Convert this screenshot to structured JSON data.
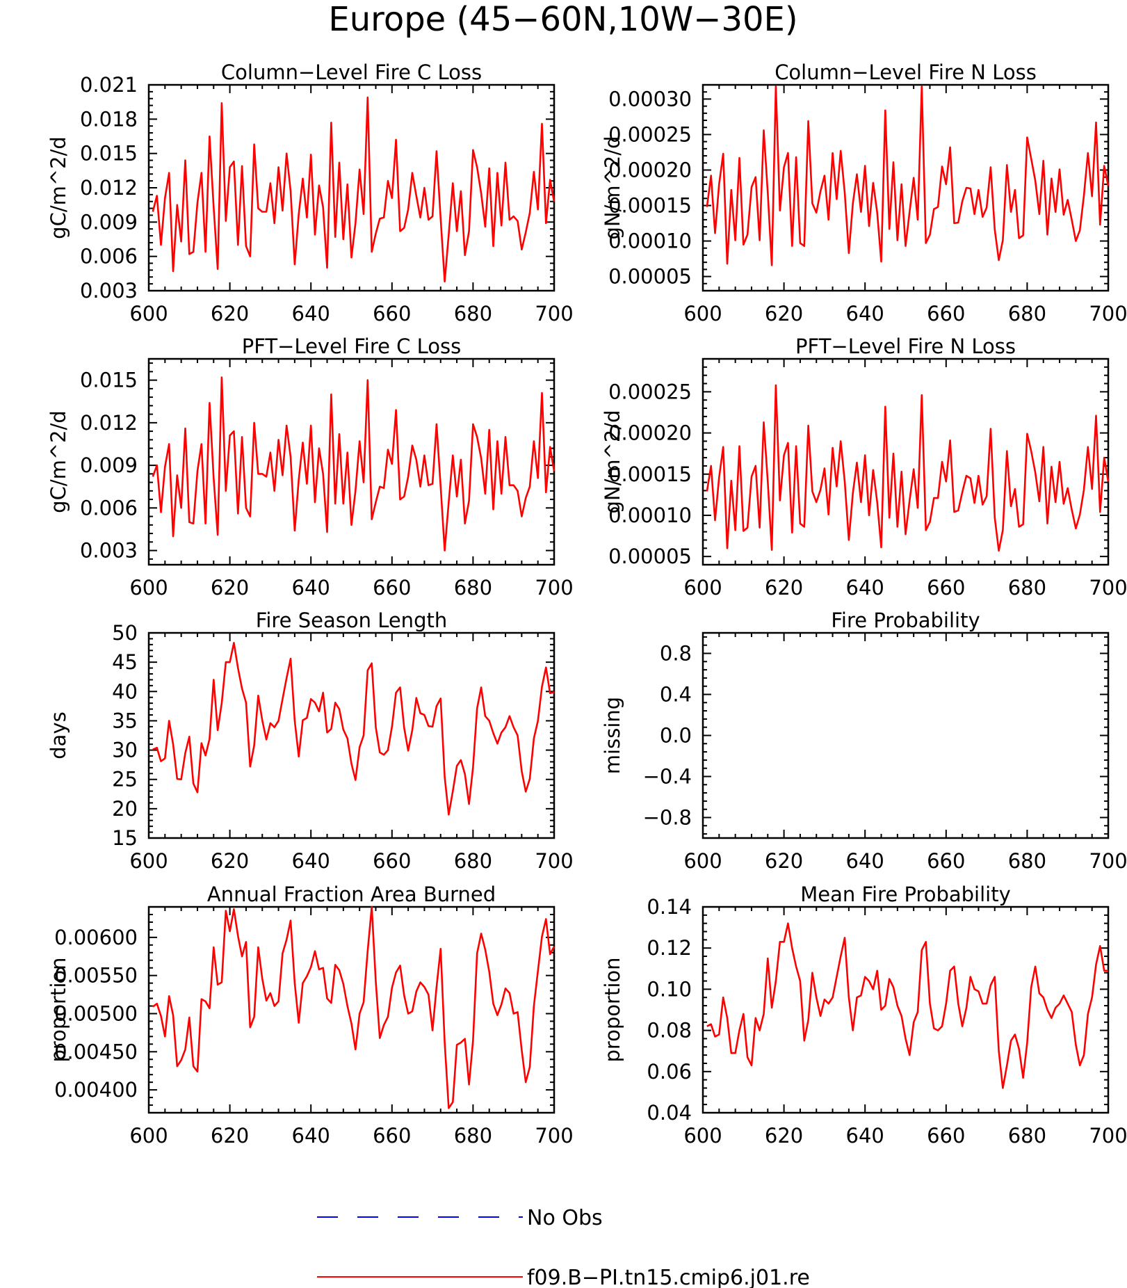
{
  "page_title": "Europe (45−60N,10W−30E)",
  "colors": {
    "model": "#ff0000",
    "obs": "#0000ff",
    "axis": "#000000"
  },
  "legend": {
    "obs_label": "No Obs",
    "model_label": "f09.B−PI.tn15.cmip6.j01.re"
  },
  "chart_data": [
    {
      "id": "col-fire-c",
      "type": "line",
      "title": "Column−Level Fire C Loss",
      "ylabel": "gC/m^2/d",
      "xlabel": "",
      "xlim": [
        600,
        700
      ],
      "ylim": [
        0.003,
        0.021
      ],
      "xticks": [
        600,
        620,
        640,
        660,
        680,
        700
      ],
      "yticks": [
        "0.003",
        "0.006",
        "0.009",
        "0.012",
        "0.015",
        "0.018",
        "0.021"
      ],
      "x_start": 601,
      "series": [
        {
          "name": "f09.B−PI.tn15.cmip6.j01.re",
          "values": [
            0.0099,
            0.0113,
            0.007,
            0.0111,
            0.0133,
            0.0047,
            0.0105,
            0.0073,
            0.0144,
            0.0062,
            0.0064,
            0.0107,
            0.0133,
            0.0064,
            0.0165,
            0.0103,
            0.0049,
            0.0194,
            0.0091,
            0.0138,
            0.0143,
            0.007,
            0.0139,
            0.0069,
            0.006,
            0.0158,
            0.0102,
            0.0099,
            0.0099,
            0.0124,
            0.0089,
            0.0138,
            0.01,
            0.015,
            0.0117,
            0.0053,
            0.0097,
            0.0128,
            0.0094,
            0.0149,
            0.0079,
            0.0122,
            0.0103,
            0.005,
            0.0177,
            0.0077,
            0.0142,
            0.0075,
            0.0123,
            0.0059,
            0.0089,
            0.0136,
            0.0097,
            0.0199,
            0.0064,
            0.008,
            0.0093,
            0.0094,
            0.0126,
            0.0111,
            0.0162,
            0.0082,
            0.0085,
            0.0101,
            0.0133,
            0.0113,
            0.0094,
            0.012,
            0.0092,
            0.0095,
            0.0152,
            0.0093,
            0.0038,
            0.0079,
            0.0124,
            0.0082,
            0.0117,
            0.0061,
            0.0082,
            0.0153,
            0.0138,
            0.0115,
            0.0086,
            0.0137,
            0.0069,
            0.0133,
            0.0087,
            0.0142,
            0.0092,
            0.0095,
            0.0091,
            0.0066,
            0.0081,
            0.0098,
            0.0134,
            0.0101,
            0.0176,
            0.0089,
            0.0127,
            0.0108
          ]
        }
      ]
    },
    {
      "id": "col-fire-n",
      "type": "line",
      "title": "Column−Level Fire N Loss",
      "ylabel": "gN/m^2/d",
      "xlabel": "",
      "xlim": [
        600,
        700
      ],
      "ylim": [
        3e-05,
        0.00032
      ],
      "xticks": [
        600,
        620,
        640,
        660,
        680,
        700
      ],
      "yticks": [
        "0.00005",
        "0.00010",
        "0.00015",
        "0.00020",
        "0.00025",
        "0.00030"
      ],
      "x_start": 601,
      "series": [
        {
          "name": "f09.B−PI.tn15.cmip6.j01.re",
          "values": [
            0.000148,
            0.000192,
            0.000111,
            0.00018,
            0.000223,
            6.8e-05,
            0.000172,
            0.000101,
            0.000217,
            9.5e-05,
            0.000109,
            0.000176,
            0.00019,
            0.000101,
            0.000256,
            0.000168,
            6.6e-05,
            0.000318,
            0.000143,
            0.000204,
            0.000224,
            9.3e-05,
            0.000218,
            9.7e-05,
            9.3e-05,
            0.000269,
            0.000153,
            0.00014,
            0.00017,
            0.000192,
            0.00013,
            0.000224,
            0.000159,
            0.000227,
            0.000168,
            8.3e-05,
            0.000153,
            0.000194,
            0.000141,
            0.000206,
            0.000121,
            0.000182,
            0.00014,
            7.1e-05,
            0.000284,
            0.000117,
            0.000211,
            0.000101,
            0.00018,
            9.3e-05,
            0.000141,
            0.000189,
            0.00013,
            0.000318,
            9.7e-05,
            0.000109,
            0.000145,
            0.000148,
            0.000205,
            0.00018,
            0.000232,
            0.000125,
            0.000126,
            0.000156,
            0.000175,
            0.000174,
            0.000138,
            0.000172,
            0.000134,
            0.000147,
            0.000204,
            0.000116,
            7.3e-05,
            0.000101,
            0.000207,
            0.000141,
            0.000172,
            0.000104,
            0.000108,
            0.000246,
            0.000216,
            0.000185,
            0.000138,
            0.000213,
            0.000109,
            0.000188,
            0.000141,
            0.000201,
            0.000137,
            0.000158,
            0.00013,
            0.0001,
            0.000115,
            0.000164,
            0.000224,
            0.000163,
            0.000267,
            0.000123,
            0.000206,
            0.000178
          ]
        }
      ]
    },
    {
      "id": "pft-fire-c",
      "type": "line",
      "title": "PFT−Level Fire C Loss",
      "ylabel": "gC/m^2/d",
      "xlabel": "",
      "xlim": [
        600,
        700
      ],
      "ylim": [
        0.002,
        0.0165
      ],
      "xticks": [
        600,
        620,
        640,
        660,
        680,
        700
      ],
      "yticks": [
        "0.003",
        "0.006",
        "0.009",
        "0.012",
        "0.015"
      ],
      "x_start": 601,
      "series": [
        {
          "name": "f09.B−PI.tn15.cmip6.j01.re",
          "values": [
            0.0082,
            0.009,
            0.0057,
            0.0089,
            0.0105,
            0.004,
            0.0083,
            0.006,
            0.0116,
            0.005,
            0.0049,
            0.0086,
            0.0105,
            0.0049,
            0.0134,
            0.0081,
            0.0041,
            0.0152,
            0.0072,
            0.0111,
            0.0114,
            0.0056,
            0.011,
            0.006,
            0.0054,
            0.012,
            0.0084,
            0.0084,
            0.0082,
            0.0099,
            0.0072,
            0.0108,
            0.0083,
            0.0118,
            0.0096,
            0.0044,
            0.008,
            0.0106,
            0.0077,
            0.0118,
            0.0064,
            0.0102,
            0.0084,
            0.0043,
            0.014,
            0.0063,
            0.0112,
            0.0063,
            0.0099,
            0.0048,
            0.0072,
            0.0107,
            0.0078,
            0.015,
            0.0052,
            0.0064,
            0.0075,
            0.0074,
            0.0101,
            0.0091,
            0.0129,
            0.0066,
            0.0068,
            0.0082,
            0.0104,
            0.0094,
            0.0075,
            0.0097,
            0.0076,
            0.0077,
            0.0119,
            0.0075,
            0.003,
            0.0064,
            0.0097,
            0.0068,
            0.0094,
            0.0049,
            0.0065,
            0.0119,
            0.011,
            0.0095,
            0.007,
            0.0115,
            0.0059,
            0.0107,
            0.007,
            0.011,
            0.0076,
            0.0076,
            0.0072,
            0.0054,
            0.0067,
            0.0075,
            0.0107,
            0.0081,
            0.0141,
            0.0071,
            0.0103,
            0.0086
          ]
        }
      ]
    },
    {
      "id": "pft-fire-n",
      "type": "line",
      "title": "PFT−Level Fire N Loss",
      "ylabel": "gN/m^2/d",
      "xlabel": "",
      "xlim": [
        600,
        700
      ],
      "ylim": [
        4e-05,
        0.00029
      ],
      "xticks": [
        600,
        620,
        640,
        660,
        680,
        700
      ],
      "yticks": [
        "0.00005",
        "0.00010",
        "0.00015",
        "0.00020",
        "0.00025"
      ],
      "x_start": 601,
      "series": [
        {
          "name": "f09.B−PI.tn15.cmip6.j01.re",
          "values": [
            0.000129,
            0.00016,
            9.4e-05,
            0.000146,
            0.000183,
            6e-05,
            0.000142,
            8.2e-05,
            0.000184,
            8.1e-05,
            8.5e-05,
            0.000147,
            0.00016,
            8.5e-05,
            0.000213,
            0.000141,
            5.8e-05,
            0.000258,
            0.000118,
            0.000173,
            0.000188,
            7.9e-05,
            0.000184,
            9e-05,
            8.6e-05,
            0.000209,
            0.000129,
            0.000116,
            0.000131,
            0.000157,
            0.000101,
            0.000182,
            0.000135,
            0.00019,
            0.000141,
            7e-05,
            0.000127,
            0.000164,
            0.000116,
            0.000173,
            0.0001,
            0.000155,
            0.000116,
            6.1e-05,
            0.000232,
            9.7e-05,
            0.000175,
            8.6e-05,
            0.000153,
            7.7e-05,
            0.000118,
            0.000156,
            0.000109,
            0.000246,
            8.2e-05,
            9.2e-05,
            0.000121,
            0.000121,
            0.000165,
            0.000141,
            0.000191,
            0.000104,
            0.000106,
            0.000128,
            0.000148,
            0.000145,
            0.000115,
            0.000148,
            0.000113,
            0.000123,
            0.000205,
            9.7e-05,
            5.7e-05,
            8.2e-05,
            0.000178,
            0.000111,
            0.000132,
            8.6e-05,
            8.9e-05,
            0.000199,
            0.000178,
            0.000152,
            0.000117,
            0.000183,
            9e-05,
            0.000159,
            0.000116,
            0.000165,
            0.000114,
            0.000133,
            0.000107,
            8.4e-05,
            0.000101,
            0.000131,
            0.000183,
            0.000132,
            0.000221,
            0.000104,
            0.00017,
            0.000141
          ]
        }
      ]
    },
    {
      "id": "fire-season",
      "type": "line",
      "title": "Fire Season Length",
      "ylabel": "days",
      "xlabel": "",
      "xlim": [
        600,
        700
      ],
      "ylim": [
        15,
        50
      ],
      "xticks": [
        600,
        620,
        640,
        660,
        680,
        700
      ],
      "yticks": [
        "15",
        "20",
        "25",
        "30",
        "35",
        "40",
        "45",
        "50"
      ],
      "x_start": 601,
      "series": [
        {
          "name": "f09.B−PI.tn15.cmip6.j01.re",
          "values": [
            30.1,
            30.4,
            28.1,
            28.6,
            35.0,
            31.0,
            25.1,
            25.0,
            29.5,
            32.3,
            24.3,
            22.8,
            31.2,
            29.1,
            31.9,
            42.0,
            33.4,
            38.0,
            45.0,
            45.0,
            48.3,
            44.0,
            40.5,
            38.1,
            27.2,
            30.8,
            39.3,
            35.1,
            31.8,
            34.6,
            33.9,
            35.0,
            38.7,
            42.3,
            45.6,
            35.0,
            28.9,
            35.1,
            35.5,
            38.7,
            38.1,
            36.6,
            39.8,
            33.0,
            33.6,
            38.1,
            37.0,
            33.5,
            32.0,
            27.7,
            24.9,
            30.5,
            32.5,
            43.6,
            44.8,
            33.9,
            29.6,
            29.2,
            30.0,
            34.0,
            39.8,
            40.7,
            33.8,
            29.9,
            33.4,
            38.9,
            36.3,
            36.0,
            34.1,
            34.0,
            37.5,
            38.8,
            25.4,
            19.0,
            23.0,
            27.3,
            28.3,
            25.9,
            20.8,
            27.1,
            37.1,
            40.7,
            35.8,
            35.0,
            32.9,
            31.1,
            33.0,
            33.9,
            35.8,
            33.9,
            32.5,
            26.4,
            22.9,
            25.1,
            32.0,
            35.0,
            40.8,
            44.1,
            39.7,
            39.9
          ]
        }
      ]
    },
    {
      "id": "fire-prob",
      "type": "line",
      "title": "Fire Probability",
      "ylabel": "missing",
      "xlabel": "",
      "xlim": [
        600,
        700
      ],
      "ylim": [
        -1.0,
        1.0
      ],
      "xticks": [
        600,
        620,
        640,
        660,
        680,
        700
      ],
      "yticks": [
        "−0.8",
        "−0.4",
        "0.0",
        "0.4",
        "0.8"
      ],
      "x_start": 601,
      "series": []
    },
    {
      "id": "area-burned",
      "type": "line",
      "title": "Annual Fraction Area Burned",
      "ylabel": "proportion",
      "xlabel": "",
      "xlim": [
        600,
        700
      ],
      "ylim": [
        0.0037,
        0.0064
      ],
      "xticks": [
        600,
        620,
        640,
        660,
        680,
        700
      ],
      "yticks": [
        "0.00400",
        "0.00450",
        "0.00500",
        "0.00550",
        "0.00600"
      ],
      "x_start": 601,
      "series": [
        {
          "name": "f09.B−PI.tn15.cmip6.j01.re",
          "values": [
            0.00509,
            0.00513,
            0.00497,
            0.0047,
            0.00523,
            0.00498,
            0.00431,
            0.00439,
            0.00453,
            0.00495,
            0.00431,
            0.00424,
            0.00519,
            0.00516,
            0.00507,
            0.00587,
            0.00538,
            0.00541,
            0.00635,
            0.00608,
            0.00637,
            0.00602,
            0.00575,
            0.00594,
            0.00482,
            0.00496,
            0.00587,
            0.00546,
            0.00517,
            0.00527,
            0.0051,
            0.00516,
            0.00579,
            0.00597,
            0.00622,
            0.0054,
            0.00488,
            0.0054,
            0.00549,
            0.00561,
            0.00582,
            0.00558,
            0.0056,
            0.0052,
            0.00514,
            0.00564,
            0.00557,
            0.00539,
            0.0051,
            0.00487,
            0.00453,
            0.005,
            0.00515,
            0.00582,
            0.0064,
            0.00542,
            0.00468,
            0.00485,
            0.00496,
            0.00534,
            0.00554,
            0.00563,
            0.00524,
            0.005,
            0.00503,
            0.00529,
            0.00541,
            0.00535,
            0.00525,
            0.00478,
            0.00535,
            0.00585,
            0.00462,
            0.00376,
            0.00384,
            0.00459,
            0.00462,
            0.00467,
            0.00407,
            0.00465,
            0.00579,
            0.00605,
            0.00584,
            0.00555,
            0.00513,
            0.00498,
            0.00512,
            0.00533,
            0.00527,
            0.005,
            0.00502,
            0.00452,
            0.0041,
            0.0043,
            0.0051,
            0.00556,
            0.00601,
            0.00624,
            0.00578,
            0.00588
          ]
        }
      ]
    },
    {
      "id": "mean-fire-prob",
      "type": "line",
      "title": "Mean Fire Probability",
      "ylabel": "proportion",
      "xlabel": "",
      "xlim": [
        600,
        700
      ],
      "ylim": [
        0.04,
        0.14
      ],
      "xticks": [
        600,
        620,
        640,
        660,
        680,
        700
      ],
      "yticks": [
        "0.04",
        "0.06",
        "0.08",
        "0.10",
        "0.12",
        "0.14"
      ],
      "x_start": 601,
      "series": [
        {
          "name": "f09.B−PI.tn15.cmip6.j01.re",
          "values": [
            0.082,
            0.083,
            0.077,
            0.078,
            0.096,
            0.086,
            0.069,
            0.069,
            0.08,
            0.088,
            0.067,
            0.063,
            0.086,
            0.08,
            0.088,
            0.115,
            0.091,
            0.104,
            0.123,
            0.123,
            0.132,
            0.12,
            0.111,
            0.104,
            0.075,
            0.085,
            0.108,
            0.096,
            0.087,
            0.095,
            0.093,
            0.096,
            0.106,
            0.116,
            0.125,
            0.096,
            0.08,
            0.096,
            0.097,
            0.106,
            0.104,
            0.1,
            0.109,
            0.09,
            0.092,
            0.105,
            0.101,
            0.092,
            0.087,
            0.076,
            0.068,
            0.084,
            0.089,
            0.119,
            0.123,
            0.093,
            0.081,
            0.08,
            0.082,
            0.093,
            0.109,
            0.111,
            0.093,
            0.082,
            0.091,
            0.106,
            0.1,
            0.099,
            0.093,
            0.093,
            0.102,
            0.106,
            0.07,
            0.052,
            0.063,
            0.075,
            0.078,
            0.071,
            0.057,
            0.074,
            0.101,
            0.111,
            0.098,
            0.096,
            0.09,
            0.086,
            0.091,
            0.093,
            0.097,
            0.093,
            0.089,
            0.073,
            0.063,
            0.068,
            0.088,
            0.096,
            0.112,
            0.121,
            0.109,
            0.109
          ]
        }
      ]
    }
  ]
}
